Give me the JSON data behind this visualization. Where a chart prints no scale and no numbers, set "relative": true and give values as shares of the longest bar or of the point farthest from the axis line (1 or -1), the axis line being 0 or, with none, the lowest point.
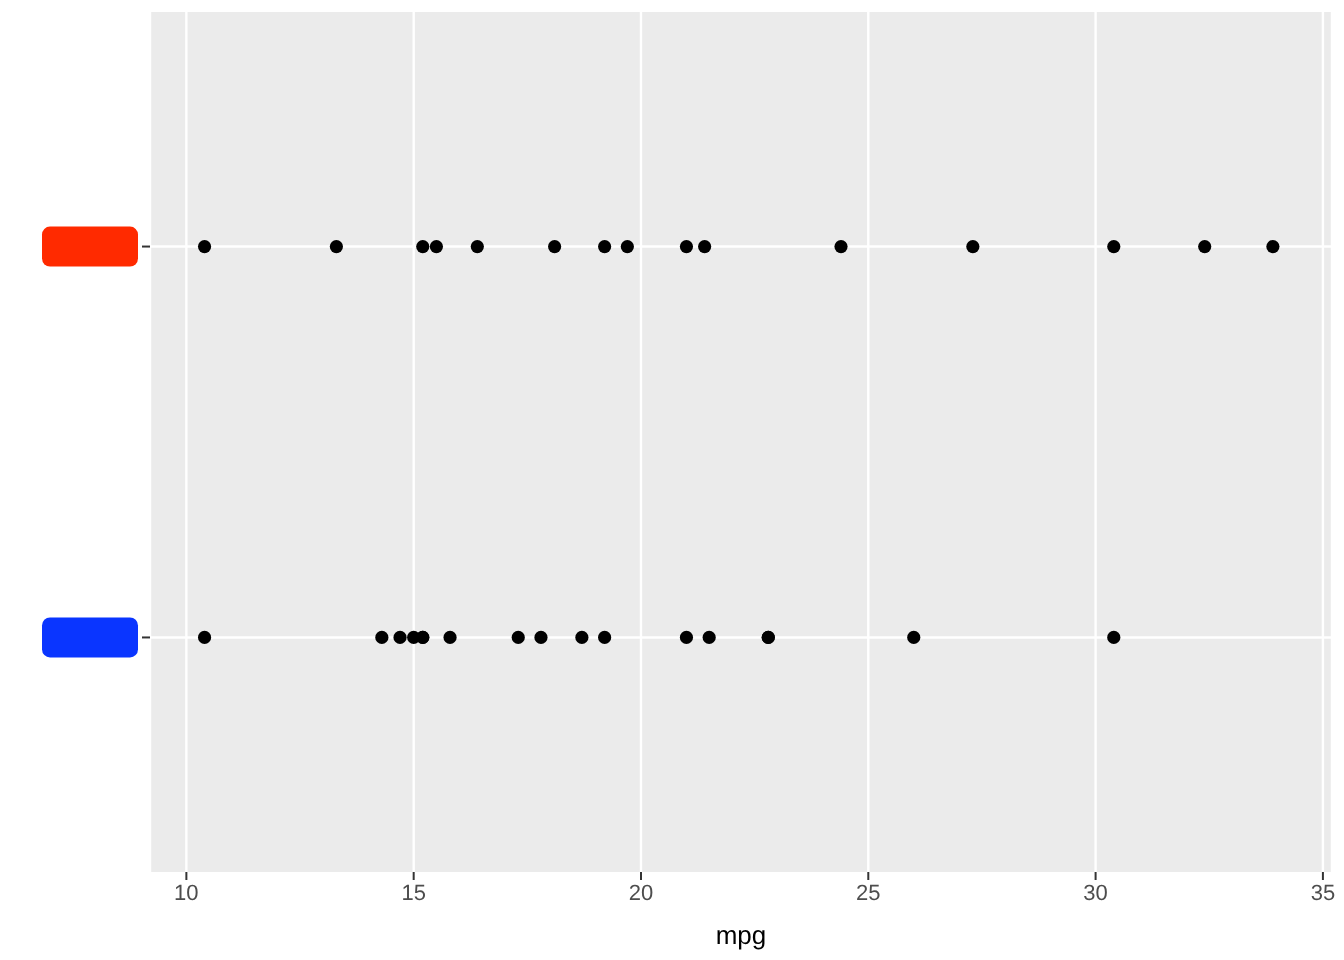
{
  "chart_data": {
    "type": "scatter",
    "xlabel": "mpg",
    "relative": true,
    "x": [
      10.4,
      13.3,
      15.2,
      15.5,
      16.4,
      18.1,
      19.2,
      19.7,
      21.0,
      21.4,
      24.4,
      27.3,
      30.4,
      32.4,
      33.9,
      10.4,
      14.3,
      14.7,
      15.0,
      15.2,
      15.2,
      15.8,
      17.3,
      17.8,
      18.7,
      19.2,
      21.0,
      21.5,
      22.8,
      22.8,
      26.0,
      30.4
    ],
    "series": [
      {
        "color": "#000000",
        "values": [
          1,
          1,
          1,
          1,
          1,
          1,
          1,
          1,
          1,
          1,
          1,
          1,
          1,
          1,
          1,
          0,
          0,
          0,
          0,
          0,
          0,
          0,
          0,
          0,
          0,
          0,
          0,
          0,
          0,
          0,
          0,
          0
        ]
      }
    ],
    "xlim": [
      9.2,
      35.2
    ],
    "xticks": [
      10,
      15,
      20,
      25,
      30,
      35
    ],
    "grid": true,
    "marker": "circle"
  }
}
